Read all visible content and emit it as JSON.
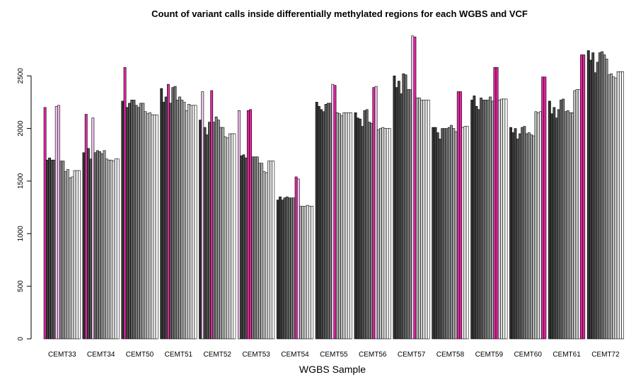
{
  "chart_data": {
    "type": "bar",
    "title": "Count of variant calls inside differentially methylated regions for each WGBS and VCF",
    "x_label": "WGBS Sample",
    "categories": [
      "CEMT33",
      "CEMT34",
      "CEMT50",
      "CEMT51",
      "CEMT52",
      "CEMT53",
      "CEMT54",
      "CEMT55",
      "CEMT56",
      "CEMT57",
      "CEMT58",
      "CEMT59",
      "CEMT60",
      "CEMT61",
      "CEMT72"
    ],
    "values": [
      [
        2200,
        1700,
        1720,
        1700,
        1700,
        2210,
        2220,
        1690,
        1690,
        1590,
        1610,
        1530,
        1540,
        1600,
        1600,
        1600
      ],
      [
        1770,
        2135,
        1810,
        1710,
        2100,
        1770,
        1790,
        1780,
        1760,
        1790,
        1710,
        1700,
        1700,
        1690,
        1710,
        1710
      ],
      [
        2260,
        2580,
        2200,
        2240,
        2270,
        2270,
        2220,
        2200,
        2240,
        2240,
        2160,
        2140,
        2150,
        2130,
        2130,
        2130
      ],
      [
        2380,
        2250,
        2300,
        2420,
        2240,
        2390,
        2400,
        2270,
        2300,
        2270,
        2250,
        2170,
        2230,
        2220,
        2220,
        2220
      ],
      [
        2080,
        2350,
        2010,
        1940,
        2060,
        2360,
        2060,
        2110,
        2080,
        2010,
        2010,
        1920,
        1910,
        1950,
        1950,
        1950
      ],
      [
        2170,
        1740,
        1750,
        1720,
        2170,
        2180,
        1730,
        1730,
        1730,
        1670,
        1670,
        1590,
        1580,
        1690,
        1690,
        1690
      ],
      [
        1320,
        1350,
        1320,
        1340,
        1350,
        1340,
        1340,
        1340,
        1540,
        1520,
        1260,
        1260,
        1260,
        1270,
        1260,
        1260
      ],
      [
        2250,
        2210,
        2180,
        2160,
        2230,
        2240,
        2240,
        2420,
        2410,
        2150,
        2140,
        2120,
        2150,
        2150,
        2150,
        2150
      ],
      [
        2150,
        2100,
        2090,
        2020,
        2170,
        2180,
        2060,
        2050,
        2390,
        2400,
        1990,
        2000,
        2010,
        2000,
        2000,
        2000
      ],
      [
        2500,
        2390,
        2450,
        2330,
        2520,
        2510,
        2370,
        2370,
        2880,
        2870,
        2290,
        2290,
        2270,
        2270,
        2270,
        2270
      ],
      [
        2010,
        2010,
        1960,
        1900,
        2000,
        2000,
        2000,
        2010,
        2030,
        2000,
        1970,
        2350,
        2350,
        2010,
        2020,
        2020
      ],
      [
        2270,
        2310,
        2210,
        2180,
        2290,
        2270,
        2270,
        2270,
        2300,
        2260,
        2580,
        2580,
        2270,
        2280,
        2280,
        2280
      ],
      [
        2010,
        1960,
        2000,
        1900,
        1950,
        2010,
        2020,
        1950,
        1960,
        1940,
        1930,
        2160,
        2150,
        2160,
        2490,
        2490
      ],
      [
        2260,
        2140,
        2200,
        2100,
        2180,
        2270,
        2280,
        2160,
        2170,
        2150,
        2150,
        2360,
        2370,
        2370,
        2700,
        2700
      ],
      [
        2740,
        2650,
        2720,
        2530,
        2630,
        2720,
        2730,
        2700,
        2660,
        2510,
        2520,
        2490,
        2480,
        2540,
        2540,
        2540
      ]
    ],
    "colors": [
      [
        "#e0289e",
        "#3d3d3d",
        "#474747",
        "#525252",
        "#5e5e5e",
        "#f0c0ee",
        "#f0c0ee",
        "#868686",
        "#949494",
        "#a3a3a3",
        "#b3b3b3",
        "#c4c4c4",
        "#d4d4d4",
        "#e3e3e3",
        "#f0f0f0",
        "#ffffff"
      ],
      [
        "#333333",
        "#e0289e",
        "#474747",
        "#525252",
        "#f0c0ee",
        "#6b6b6b",
        "#787878",
        "#868686",
        "#949494",
        "#a3a3a3",
        "#b3b3b3",
        "#c4c4c4",
        "#d4d4d4",
        "#e3e3e3",
        "#f0f0f0",
        "#ffffff"
      ],
      [
        "#333333",
        "#e0289e",
        "#474747",
        "#525252",
        "#5e5e5e",
        "#6b6b6b",
        "#787878",
        "#868686",
        "#949494",
        "#a3a3a3",
        "#b3b3b3",
        "#c4c4c4",
        "#d4d4d4",
        "#e3e3e3",
        "#f0f0f0",
        "#ffffff"
      ],
      [
        "#333333",
        "#3d3d3d",
        "#474747",
        "#e0289e",
        "#5e5e5e",
        "#6b6b6b",
        "#787878",
        "#868686",
        "#949494",
        "#a3a3a3",
        "#b3b3b3",
        "#c4c4c4",
        "#d4d4d4",
        "#e3e3e3",
        "#f0f0f0",
        "#ffffff"
      ],
      [
        "#333333",
        "#f0c0ee",
        "#474747",
        "#525252",
        "#5e5e5e",
        "#e0289e",
        "#787878",
        "#868686",
        "#949494",
        "#a3a3a3",
        "#b3b3b3",
        "#c4c4c4",
        "#d4d4d4",
        "#e3e3e3",
        "#f0f0f0",
        "#ffffff"
      ],
      [
        "#f0c0ee",
        "#3d3d3d",
        "#474747",
        "#525252",
        "#e0289e",
        "#e0289e",
        "#787878",
        "#868686",
        "#949494",
        "#a3a3a3",
        "#b3b3b3",
        "#c4c4c4",
        "#d4d4d4",
        "#e3e3e3",
        "#f0f0f0",
        "#ffffff"
      ],
      [
        "#333333",
        "#3d3d3d",
        "#474747",
        "#525252",
        "#5e5e5e",
        "#6b6b6b",
        "#787878",
        "#868686",
        "#e0289e",
        "#f0c0ee",
        "#b3b3b3",
        "#c4c4c4",
        "#d4d4d4",
        "#e3e3e3",
        "#f0f0f0",
        "#ffffff"
      ],
      [
        "#333333",
        "#3d3d3d",
        "#474747",
        "#525252",
        "#5e5e5e",
        "#6b6b6b",
        "#787878",
        "#f0c0ee",
        "#e0289e",
        "#a3a3a3",
        "#b3b3b3",
        "#c4c4c4",
        "#d4d4d4",
        "#e3e3e3",
        "#f0f0f0",
        "#ffffff"
      ],
      [
        "#333333",
        "#3d3d3d",
        "#474747",
        "#525252",
        "#5e5e5e",
        "#6b6b6b",
        "#787878",
        "#868686",
        "#e0289e",
        "#f0c0ee",
        "#b3b3b3",
        "#c4c4c4",
        "#d4d4d4",
        "#e3e3e3",
        "#f0f0f0",
        "#ffffff"
      ],
      [
        "#333333",
        "#3d3d3d",
        "#474747",
        "#525252",
        "#5e5e5e",
        "#6b6b6b",
        "#787878",
        "#868686",
        "#f0c0ee",
        "#e0289e",
        "#b3b3b3",
        "#c4c4c4",
        "#d4d4d4",
        "#e3e3e3",
        "#f0f0f0",
        "#ffffff"
      ],
      [
        "#333333",
        "#3d3d3d",
        "#474747",
        "#525252",
        "#5e5e5e",
        "#6b6b6b",
        "#787878",
        "#868686",
        "#949494",
        "#a3a3a3",
        "#b3b3b3",
        "#e0289e",
        "#e0289e",
        "#e3e3e3",
        "#f0f0f0",
        "#ffffff"
      ],
      [
        "#333333",
        "#3d3d3d",
        "#474747",
        "#525252",
        "#5e5e5e",
        "#6b6b6b",
        "#787878",
        "#868686",
        "#949494",
        "#a3a3a3",
        "#e0289e",
        "#e0289e",
        "#d4d4d4",
        "#e3e3e3",
        "#f0f0f0",
        "#ffffff"
      ],
      [
        "#333333",
        "#3d3d3d",
        "#474747",
        "#525252",
        "#5e5e5e",
        "#6b6b6b",
        "#787878",
        "#868686",
        "#949494",
        "#a3a3a3",
        "#b3b3b3",
        "#c4c4c4",
        "#d4d4d4",
        "#e3e3e3",
        "#e0289e",
        "#e0289e"
      ],
      [
        "#333333",
        "#3d3d3d",
        "#474747",
        "#525252",
        "#5e5e5e",
        "#6b6b6b",
        "#787878",
        "#868686",
        "#949494",
        "#a3a3a3",
        "#b3b3b3",
        "#c4c4c4",
        "#d4d4d4",
        "#e3e3e3",
        "#e0289e",
        "#e0289e"
      ],
      [
        "#333333",
        "#3d3d3d",
        "#474747",
        "#525252",
        "#5e5e5e",
        "#6b6b6b",
        "#787878",
        "#868686",
        "#949494",
        "#a3a3a3",
        "#b3b3b3",
        "#c4c4c4",
        "#d4d4d4",
        "#e3e3e3",
        "#f0f0f0",
        "#ffffff"
      ]
    ],
    "ylim": [
      0,
      3100
    ],
    "yticks": [
      0,
      500,
      1000,
      1500,
      2000,
      2500
    ]
  }
}
